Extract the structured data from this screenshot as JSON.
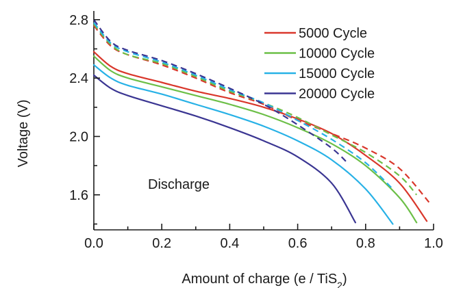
{
  "chart_data": {
    "type": "line",
    "xlabel": "Amount of charge (e / TiS",
    "xlabel_sub": "2",
    "xlabel_end": ")",
    "ylabel": "Voltage (V)",
    "xlim": [
      0.0,
      1.0
    ],
    "ylim": [
      1.36,
      2.86
    ],
    "xticks": [
      0.0,
      0.2,
      0.4,
      0.6,
      0.8,
      1.0
    ],
    "xtick_labels": [
      "0.0",
      "0.2",
      "0.4",
      "0.6",
      "0.8",
      "1.0"
    ],
    "xtick_minor": [
      0.1,
      0.3,
      0.5,
      0.7,
      0.9
    ],
    "yticks": [
      1.6,
      2.0,
      2.4,
      2.8
    ],
    "ytick_labels": [
      "1.6",
      "2.0",
      "2.4",
      "2.8"
    ],
    "ytick_minor": [
      1.4,
      1.8,
      2.2,
      2.6
    ],
    "grid": false,
    "legend_position": "top-right",
    "annotation": "Discharge",
    "series": [
      {
        "name": "5000 Cycle",
        "color": "#d9372b",
        "discharge": [
          [
            0.0,
            2.58
          ],
          [
            0.05,
            2.48
          ],
          [
            0.1,
            2.43
          ],
          [
            0.2,
            2.37
          ],
          [
            0.3,
            2.31
          ],
          [
            0.4,
            2.26
          ],
          [
            0.5,
            2.2
          ],
          [
            0.6,
            2.12
          ],
          [
            0.7,
            2.02
          ],
          [
            0.8,
            1.87
          ],
          [
            0.9,
            1.68
          ],
          [
            0.98,
            1.42
          ]
        ],
        "charge": [
          [
            0.0,
            2.76
          ],
          [
            0.05,
            2.62
          ],
          [
            0.1,
            2.56
          ],
          [
            0.2,
            2.49
          ],
          [
            0.3,
            2.4
          ],
          [
            0.4,
            2.3
          ],
          [
            0.5,
            2.22
          ],
          [
            0.6,
            2.11
          ],
          [
            0.7,
            2.02
          ],
          [
            0.8,
            1.92
          ],
          [
            0.9,
            1.78
          ],
          [
            0.99,
            1.54
          ]
        ]
      },
      {
        "name": "10000 Cycle",
        "color": "#6cbf47",
        "discharge": [
          [
            0.0,
            2.55
          ],
          [
            0.05,
            2.45
          ],
          [
            0.1,
            2.4
          ],
          [
            0.2,
            2.34
          ],
          [
            0.3,
            2.28
          ],
          [
            0.4,
            2.22
          ],
          [
            0.5,
            2.15
          ],
          [
            0.6,
            2.06
          ],
          [
            0.7,
            1.95
          ],
          [
            0.8,
            1.8
          ],
          [
            0.9,
            1.58
          ],
          [
            0.95,
            1.41
          ]
        ],
        "charge": [
          [
            0.0,
            2.77
          ],
          [
            0.05,
            2.63
          ],
          [
            0.1,
            2.56
          ],
          [
            0.2,
            2.5
          ],
          [
            0.3,
            2.41
          ],
          [
            0.4,
            2.31
          ],
          [
            0.5,
            2.23
          ],
          [
            0.6,
            2.13
          ],
          [
            0.7,
            2.01
          ],
          [
            0.8,
            1.89
          ],
          [
            0.9,
            1.73
          ],
          [
            0.95,
            1.6
          ]
        ]
      },
      {
        "name": "15000 Cycle",
        "color": "#27b1e6",
        "discharge": [
          [
            0.0,
            2.49
          ],
          [
            0.05,
            2.4
          ],
          [
            0.1,
            2.35
          ],
          [
            0.2,
            2.29
          ],
          [
            0.3,
            2.22
          ],
          [
            0.4,
            2.15
          ],
          [
            0.5,
            2.07
          ],
          [
            0.6,
            1.97
          ],
          [
            0.7,
            1.84
          ],
          [
            0.8,
            1.64
          ],
          [
            0.88,
            1.4
          ]
        ],
        "charge": [
          [
            0.0,
            2.78
          ],
          [
            0.05,
            2.64
          ],
          [
            0.1,
            2.58
          ],
          [
            0.2,
            2.51
          ],
          [
            0.3,
            2.42
          ],
          [
            0.4,
            2.32
          ],
          [
            0.5,
            2.23
          ],
          [
            0.6,
            2.11
          ],
          [
            0.7,
            1.98
          ],
          [
            0.8,
            1.82
          ],
          [
            0.88,
            1.64
          ]
        ]
      },
      {
        "name": "20000 Cycle",
        "color": "#3a3592",
        "discharge": [
          [
            0.0,
            2.42
          ],
          [
            0.05,
            2.33
          ],
          [
            0.1,
            2.28
          ],
          [
            0.2,
            2.21
          ],
          [
            0.3,
            2.14
          ],
          [
            0.4,
            2.06
          ],
          [
            0.5,
            1.97
          ],
          [
            0.6,
            1.86
          ],
          [
            0.7,
            1.68
          ],
          [
            0.77,
            1.41
          ]
        ],
        "charge": [
          [
            0.0,
            2.8
          ],
          [
            0.05,
            2.65
          ],
          [
            0.1,
            2.59
          ],
          [
            0.2,
            2.52
          ],
          [
            0.3,
            2.43
          ],
          [
            0.4,
            2.33
          ],
          [
            0.5,
            2.22
          ],
          [
            0.6,
            2.08
          ],
          [
            0.7,
            1.92
          ],
          [
            0.75,
            1.81
          ]
        ]
      }
    ]
  }
}
